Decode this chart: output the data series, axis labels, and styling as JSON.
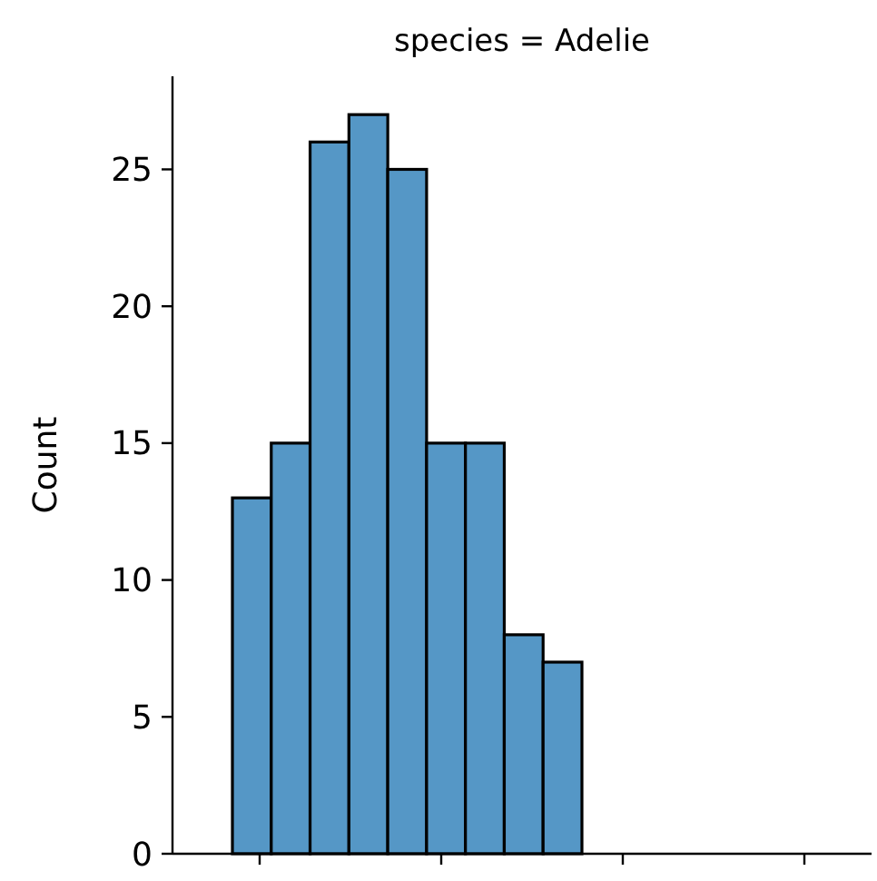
{
  "chart_data": {
    "type": "bar",
    "title": "species = Adelie",
    "ylabel": "Count",
    "categories": [
      null,
      null,
      null,
      null,
      null,
      null,
      null,
      null,
      null
    ],
    "values": [
      13,
      15,
      26,
      27,
      25,
      15,
      15,
      8,
      7
    ],
    "color": "#5597c6",
    "ylim": [
      0,
      28.4
    ],
    "yticks": [
      0,
      5,
      10,
      15,
      20,
      25
    ]
  }
}
